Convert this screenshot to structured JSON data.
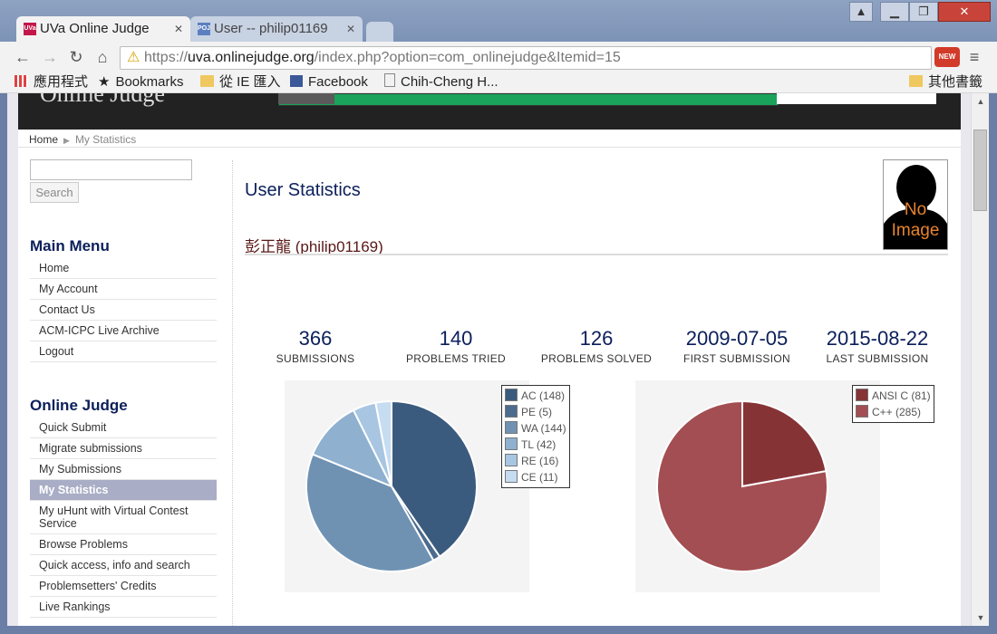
{
  "browser": {
    "tabs": [
      {
        "label": "UVa Online Judge",
        "favicon": "UVa"
      },
      {
        "label": "User -- philip01169",
        "favicon": "POJ"
      }
    ],
    "url_prefix": "https://",
    "url_host": "uva.onlinejudge.org",
    "url_path": "/index.php?option=com_onlinejudge&Itemid=15",
    "bookmarks": {
      "apps": "應用程式",
      "bookmarks": "Bookmarks",
      "ie": "從 IE 匯入",
      "facebook": "Facebook",
      "chih": "Chih-Cheng H...",
      "other": "其他書籤"
    },
    "ext_badge": "NEW"
  },
  "breadcrumb": {
    "home": "Home",
    "current": "My Statistics"
  },
  "search": {
    "button": "Search"
  },
  "main_menu": {
    "title": "Main Menu",
    "items": [
      "Home",
      "My Account",
      "Contact Us",
      "ACM-ICPC Live Archive",
      "Logout"
    ]
  },
  "oj_menu": {
    "title": "Online Judge",
    "items": [
      "Quick Submit",
      "Migrate submissions",
      "My Submissions",
      "My Statistics",
      "My uHunt with Virtual Contest Service",
      "Browse Problems",
      "Quick access, info and search",
      "Problemsetters' Credits",
      "Live Rankings"
    ],
    "active_index": 3
  },
  "main": {
    "title": "User Statistics",
    "user_name": "彭正龍",
    "user_handle": "(philip01169)",
    "avatar_text": [
      "No",
      "Image"
    ]
  },
  "stats": [
    {
      "value": "366",
      "label": "SUBMISSIONS"
    },
    {
      "value": "140",
      "label": "PROBLEMS TRIED"
    },
    {
      "value": "126",
      "label": "PROBLEMS SOLVED"
    },
    {
      "value": "2009-07-05",
      "label": "FIRST SUBMISSION"
    },
    {
      "value": "2015-08-22",
      "label": "LAST SUBMISSION"
    }
  ],
  "chart_data": [
    {
      "type": "pie",
      "categories": [
        "AC (148)",
        "PE (5)",
        "WA (144)",
        "TL (42)",
        "RE (16)",
        "CE (11)"
      ],
      "values": [
        148,
        5,
        144,
        42,
        16,
        11
      ],
      "colors": [
        "#3b5b7e",
        "#4c6b8e",
        "#6f92b3",
        "#8fb0cf",
        "#a8c6e2",
        "#c5dcf1"
      ],
      "legend": "top-right"
    },
    {
      "type": "pie",
      "categories": [
        "ANSI C (81)",
        "C++ (285)"
      ],
      "values": [
        81,
        285
      ],
      "colors": [
        "#863336",
        "#a34e52"
      ],
      "legend": "top-right"
    }
  ]
}
